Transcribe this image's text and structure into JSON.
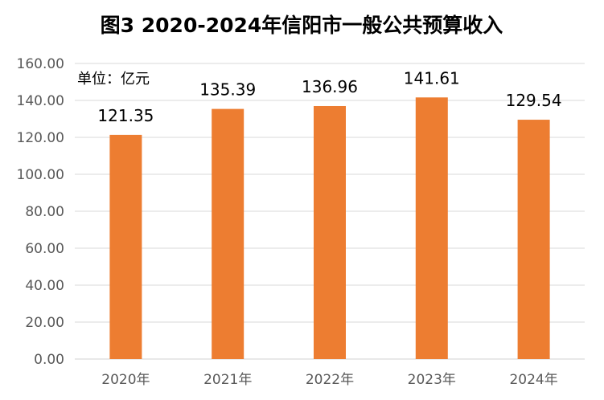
{
  "chart_data": {
    "type": "bar",
    "title": "图3  2020-2024年信阳市一般公共预算收入",
    "unit_label": "单位：亿元",
    "categories": [
      "2020年",
      "2021年",
      "2022年",
      "2023年",
      "2024年"
    ],
    "values": [
      121.35,
      135.39,
      136.96,
      141.61,
      129.54
    ],
    "data_labels": [
      "121.35",
      "135.39",
      "136.96",
      "141.61",
      "129.54"
    ],
    "ylim": [
      0,
      160
    ],
    "yticks": [
      "0.00",
      "20.00",
      "40.00",
      "60.00",
      "80.00",
      "100.00",
      "120.00",
      "140.00",
      "160.00"
    ],
    "ytick_step": 20,
    "bar_color": "#ed7d31",
    "grid": true,
    "legend": "none"
  }
}
